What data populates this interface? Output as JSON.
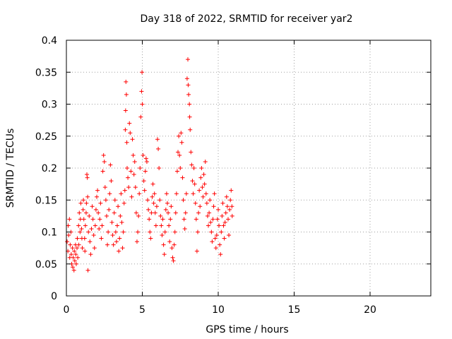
{
  "chart_data": {
    "type": "scatter",
    "title": "Day 318 of 2022, SRMTID for receiver yar2",
    "xlabel": "GPS time / hours",
    "ylabel": "SRMTID / TECUs",
    "xlim": [
      0,
      24
    ],
    "ylim": [
      0,
      0.4
    ],
    "xticks": [
      0,
      5,
      10,
      15,
      20
    ],
    "xtick_labels": [
      "0",
      "5",
      "10",
      "15",
      "20"
    ],
    "yticks": [
      0,
      0.05,
      0.1,
      0.15,
      0.2,
      0.25,
      0.3,
      0.35,
      0.4
    ],
    "ytick_labels": [
      "0",
      "0.05",
      "0.1",
      "0.15",
      "0.2",
      "0.25",
      "0.3",
      "0.35",
      "0.4"
    ],
    "grid": true,
    "marker": "+",
    "color": "#ff0000",
    "series": [
      {
        "name": "SRMTID",
        "points": [
          [
            0.05,
            0.085
          ],
          [
            0.1,
            0.07
          ],
          [
            0.12,
            0.11
          ],
          [
            0.15,
            0.095
          ],
          [
            0.2,
            0.12
          ],
          [
            0.22,
            0.06
          ],
          [
            0.25,
            0.08
          ],
          [
            0.3,
            0.1
          ],
          [
            0.32,
            0.065
          ],
          [
            0.35,
            0.05
          ],
          [
            0.4,
            0.075
          ],
          [
            0.42,
            0.045
          ],
          [
            0.45,
            0.06
          ],
          [
            0.5,
            0.04
          ],
          [
            0.52,
            0.07
          ],
          [
            0.55,
            0.055
          ],
          [
            0.6,
            0.08
          ],
          [
            0.62,
            0.065
          ],
          [
            0.65,
            0.05
          ],
          [
            0.7,
            0.075
          ],
          [
            0.72,
            0.09
          ],
          [
            0.75,
            0.06
          ],
          [
            0.8,
            0.11
          ],
          [
            0.82,
            0.08
          ],
          [
            0.85,
            0.13
          ],
          [
            0.9,
            0.1
          ],
          [
            0.92,
            0.12
          ],
          [
            0.95,
            0.145
          ],
          [
            1.0,
            0.105
          ],
          [
            1.02,
            0.09
          ],
          [
            1.05,
            0.075
          ],
          [
            1.1,
            0.135
          ],
          [
            1.12,
            0.15
          ],
          [
            1.15,
            0.12
          ],
          [
            1.2,
            0.09
          ],
          [
            1.22,
            0.07
          ],
          [
            1.25,
            0.11
          ],
          [
            1.3,
            0.13
          ],
          [
            1.32,
            0.145
          ],
          [
            1.35,
            0.19
          ],
          [
            1.38,
            0.185
          ],
          [
            1.4,
            0.155
          ],
          [
            1.42,
            0.04
          ],
          [
            1.45,
            0.1
          ],
          [
            1.5,
            0.125
          ],
          [
            1.55,
            0.085
          ],
          [
            1.6,
            0.065
          ],
          [
            1.65,
            0.105
          ],
          [
            1.7,
            0.14
          ],
          [
            1.75,
            0.12
          ],
          [
            1.8,
            0.095
          ],
          [
            1.85,
            0.075
          ],
          [
            1.9,
            0.11
          ],
          [
            1.95,
            0.135
          ],
          [
            2.0,
            0.155
          ],
          [
            2.05,
            0.165
          ],
          [
            2.1,
            0.13
          ],
          [
            2.15,
            0.105
          ],
          [
            2.2,
            0.12
          ],
          [
            2.25,
            0.145
          ],
          [
            2.3,
            0.09
          ],
          [
            2.35,
            0.11
          ],
          [
            2.4,
            0.195
          ],
          [
            2.45,
            0.22
          ],
          [
            2.5,
            0.21
          ],
          [
            2.55,
            0.17
          ],
          [
            2.6,
            0.15
          ],
          [
            2.65,
            0.125
          ],
          [
            2.7,
            0.08
          ],
          [
            2.75,
            0.1
          ],
          [
            2.8,
            0.135
          ],
          [
            2.85,
            0.16
          ],
          [
            2.9,
            0.205
          ],
          [
            2.95,
            0.18
          ],
          [
            3.0,
            0.115
          ],
          [
            3.05,
            0.095
          ],
          [
            3.1,
            0.08
          ],
          [
            3.15,
            0.13
          ],
          [
            3.2,
            0.15
          ],
          [
            3.25,
            0.1
          ],
          [
            3.3,
            0.085
          ],
          [
            3.35,
            0.11
          ],
          [
            3.4,
            0.14
          ],
          [
            3.45,
            0.07
          ],
          [
            3.5,
            0.09
          ],
          [
            3.55,
            0.125
          ],
          [
            3.6,
            0.16
          ],
          [
            3.65,
            0.115
          ],
          [
            3.7,
            0.075
          ],
          [
            3.75,
            0.1
          ],
          [
            3.8,
            0.145
          ],
          [
            3.85,
            0.165
          ],
          [
            3.88,
            0.26
          ],
          [
            3.9,
            0.29
          ],
          [
            3.92,
            0.335
          ],
          [
            3.95,
            0.315
          ],
          [
            3.98,
            0.24
          ],
          [
            4.0,
            0.2
          ],
          [
            4.05,
            0.185
          ],
          [
            4.1,
            0.17
          ],
          [
            4.15,
            0.27
          ],
          [
            4.2,
            0.255
          ],
          [
            4.25,
            0.195
          ],
          [
            4.3,
            0.155
          ],
          [
            4.35,
            0.245
          ],
          [
            4.4,
            0.22
          ],
          [
            4.45,
            0.19
          ],
          [
            4.5,
            0.21
          ],
          [
            4.55,
            0.17
          ],
          [
            4.6,
            0.13
          ],
          [
            4.65,
            0.085
          ],
          [
            4.7,
            0.1
          ],
          [
            4.75,
            0.125
          ],
          [
            4.8,
            0.16
          ],
          [
            4.85,
            0.2
          ],
          [
            4.9,
            0.28
          ],
          [
            4.95,
            0.32
          ],
          [
            4.98,
            0.35
          ],
          [
            5.0,
            0.3
          ],
          [
            5.05,
            0.22
          ],
          [
            5.1,
            0.18
          ],
          [
            5.15,
            0.165
          ],
          [
            5.2,
            0.195
          ],
          [
            5.25,
            0.215
          ],
          [
            5.3,
            0.21
          ],
          [
            5.35,
            0.15
          ],
          [
            5.4,
            0.135
          ],
          [
            5.45,
            0.12
          ],
          [
            5.5,
            0.1
          ],
          [
            5.55,
            0.09
          ],
          [
            5.6,
            0.13
          ],
          [
            5.65,
            0.155
          ],
          [
            5.7,
            0.175
          ],
          [
            5.75,
            0.145
          ],
          [
            5.8,
            0.16
          ],
          [
            5.85,
            0.13
          ],
          [
            5.9,
            0.11
          ],
          [
            5.95,
            0.14
          ],
          [
            6.0,
            0.245
          ],
          [
            6.05,
            0.23
          ],
          [
            6.1,
            0.2
          ],
          [
            6.15,
            0.15
          ],
          [
            6.2,
            0.125
          ],
          [
            6.25,
            0.11
          ],
          [
            6.3,
            0.095
          ],
          [
            6.35,
            0.12
          ],
          [
            6.4,
            0.08
          ],
          [
            6.45,
            0.065
          ],
          [
            6.5,
            0.1
          ],
          [
            6.55,
            0.135
          ],
          [
            6.6,
            0.16
          ],
          [
            6.65,
            0.145
          ],
          [
            6.7,
            0.13
          ],
          [
            6.75,
            0.11
          ],
          [
            6.8,
            0.085
          ],
          [
            6.85,
            0.12
          ],
          [
            6.9,
            0.14
          ],
          [
            6.95,
            0.075
          ],
          [
            7.0,
            0.06
          ],
          [
            7.05,
            0.055
          ],
          [
            7.1,
            0.08
          ],
          [
            7.15,
            0.1
          ],
          [
            7.2,
            0.13
          ],
          [
            7.25,
            0.16
          ],
          [
            7.3,
            0.195
          ],
          [
            7.35,
            0.225
          ],
          [
            7.4,
            0.25
          ],
          [
            7.45,
            0.22
          ],
          [
            7.5,
            0.2
          ],
          [
            7.55,
            0.255
          ],
          [
            7.6,
            0.24
          ],
          [
            7.65,
            0.185
          ],
          [
            7.7,
            0.15
          ],
          [
            7.75,
            0.12
          ],
          [
            7.8,
            0.105
          ],
          [
            7.85,
            0.13
          ],
          [
            7.9,
            0.16
          ],
          [
            7.95,
            0.34
          ],
          [
            8.0,
            0.37
          ],
          [
            8.02,
            0.33
          ],
          [
            8.05,
            0.315
          ],
          [
            8.1,
            0.3
          ],
          [
            8.12,
            0.28
          ],
          [
            8.15,
            0.26
          ],
          [
            8.2,
            0.225
          ],
          [
            8.25,
            0.205
          ],
          [
            8.3,
            0.18
          ],
          [
            8.35,
            0.16
          ],
          [
            8.4,
            0.2
          ],
          [
            8.45,
            0.175
          ],
          [
            8.5,
            0.145
          ],
          [
            8.55,
            0.12
          ],
          [
            8.6,
            0.07
          ],
          [
            8.65,
            0.1
          ],
          [
            8.7,
            0.13
          ],
          [
            8.75,
            0.165
          ],
          [
            8.8,
            0.14
          ],
          [
            8.85,
            0.185
          ],
          [
            8.9,
            0.2
          ],
          [
            8.95,
            0.17
          ],
          [
            9.0,
            0.155
          ],
          [
            9.05,
            0.19
          ],
          [
            9.1,
            0.175
          ],
          [
            9.15,
            0.21
          ],
          [
            9.2,
            0.16
          ],
          [
            9.25,
            0.145
          ],
          [
            9.3,
            0.125
          ],
          [
            9.35,
            0.11
          ],
          [
            9.4,
            0.13
          ],
          [
            9.45,
            0.15
          ],
          [
            9.5,
            0.115
          ],
          [
            9.55,
            0.1
          ],
          [
            9.6,
            0.085
          ],
          [
            9.65,
            0.12
          ],
          [
            9.7,
            0.14
          ],
          [
            9.75,
            0.16
          ],
          [
            9.8,
            0.09
          ],
          [
            9.85,
            0.075
          ],
          [
            9.9,
            0.095
          ],
          [
            9.95,
            0.12
          ],
          [
            10.0,
            0.135
          ],
          [
            10.05,
            0.11
          ],
          [
            10.1,
            0.08
          ],
          [
            10.15,
            0.065
          ],
          [
            10.2,
            0.1
          ],
          [
            10.25,
            0.125
          ],
          [
            10.3,
            0.145
          ],
          [
            10.35,
            0.11
          ],
          [
            10.4,
            0.09
          ],
          [
            10.45,
            0.115
          ],
          [
            10.5,
            0.13
          ],
          [
            10.55,
            0.155
          ],
          [
            10.6,
            0.14
          ],
          [
            10.65,
            0.12
          ],
          [
            10.7,
            0.095
          ],
          [
            10.75,
            0.135
          ],
          [
            10.8,
            0.15
          ],
          [
            10.85,
            0.165
          ],
          [
            10.9,
            0.14
          ],
          [
            10.92,
            0.125
          ]
        ]
      }
    ]
  }
}
